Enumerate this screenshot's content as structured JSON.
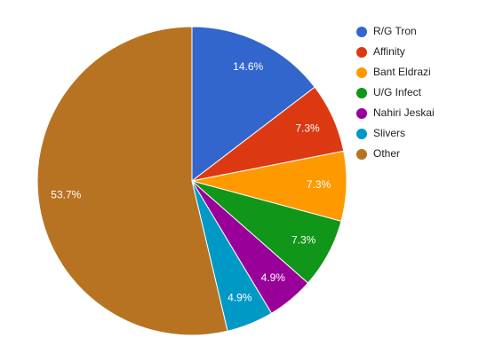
{
  "chart_data": {
    "type": "pie",
    "categories": [
      "R/G Tron",
      "Affinity",
      "Bant Eldrazi",
      "U/G Infect",
      "Nahiri Jeskai",
      "Slivers",
      "Other"
    ],
    "values": [
      14.6,
      7.3,
      7.3,
      7.3,
      4.9,
      4.9,
      53.7
    ],
    "value_labels": [
      "14.6%",
      "7.3%",
      "7.3%",
      "7.3%",
      "4.9%",
      "4.9%",
      "53.7%"
    ],
    "colors": [
      "#3366cc",
      "#dc3912",
      "#ff9900",
      "#109618",
      "#990099",
      "#0099c6",
      "#b77322"
    ],
    "legend": "right"
  }
}
